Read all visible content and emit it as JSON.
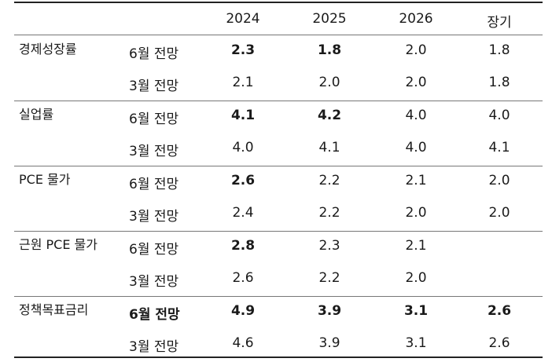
{
  "header": {
    "blank": "",
    "years": [
      "2024",
      "2025",
      "2026",
      "장기"
    ]
  },
  "groups": [
    {
      "label": "경제성장률",
      "rows": [
        {
          "label": "6월 전망",
          "values": [
            "2.3",
            "1.8",
            "2.0",
            "1.8"
          ],
          "bold": [
            true,
            true,
            false,
            false
          ]
        },
        {
          "label": "3월 전망",
          "values": [
            "2.1",
            "2.0",
            "2.0",
            "1.8"
          ],
          "bold": [
            false,
            false,
            false,
            false
          ]
        }
      ]
    },
    {
      "label": "실업률",
      "rows": [
        {
          "label": "6월 전망",
          "values": [
            "4.1",
            "4.2",
            "4.0",
            "4.0"
          ],
          "bold": [
            true,
            true,
            false,
            false
          ]
        },
        {
          "label": "3월 전망",
          "values": [
            "4.0",
            "4.1",
            "4.0",
            "4.1"
          ],
          "bold": [
            false,
            false,
            false,
            false
          ]
        }
      ]
    },
    {
      "label": "PCE 물가",
      "rows": [
        {
          "label": "6월 전망",
          "values": [
            "2.6",
            "2.2",
            "2.1",
            "2.0"
          ],
          "bold": [
            true,
            false,
            false,
            false
          ]
        },
        {
          "label": "3월 전망",
          "values": [
            "2.4",
            "2.2",
            "2.0",
            "2.0"
          ],
          "bold": [
            false,
            false,
            false,
            false
          ]
        }
      ]
    },
    {
      "label": "근원 PCE 물가",
      "rows": [
        {
          "label": "6월 전망",
          "values": [
            "2.8",
            "2.3",
            "2.1",
            ""
          ],
          "bold": [
            true,
            false,
            false,
            false
          ]
        },
        {
          "label": "3월 전망",
          "values": [
            "2.6",
            "2.2",
            "2.0",
            ""
          ],
          "bold": [
            false,
            false,
            false,
            false
          ]
        }
      ]
    },
    {
      "label": "정책목표금리",
      "rows": [
        {
          "label": "6월 전망",
          "values": [
            "4.9",
            "3.9",
            "3.1",
            "2.6"
          ],
          "bold": [
            true,
            true,
            true,
            true
          ],
          "label_bold": true
        },
        {
          "label": "3월 전망",
          "values": [
            "4.6",
            "3.9",
            "3.1",
            "2.6"
          ],
          "bold": [
            false,
            false,
            false,
            false
          ]
        }
      ]
    }
  ]
}
